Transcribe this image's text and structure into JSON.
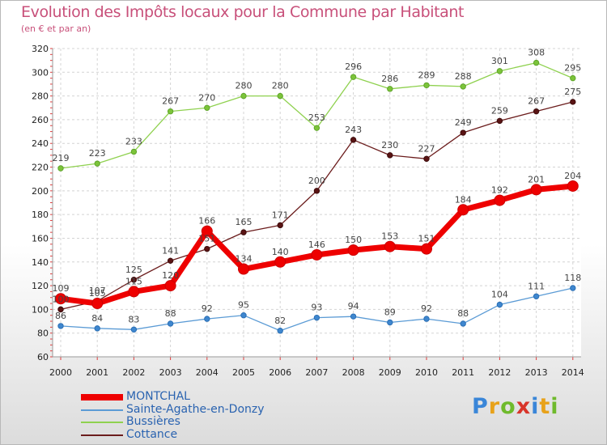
{
  "title": "Evolution des Impôts locaux pour la Commune par Habitant",
  "subtitle": "(en € et par an)",
  "logo": "Proxiti",
  "chart_data": {
    "type": "line",
    "x": [
      "2000",
      "2001",
      "2002",
      "2003",
      "2004",
      "2005",
      "2006",
      "2007",
      "2008",
      "2009",
      "2010",
      "2011",
      "2012",
      "2013",
      "2014"
    ],
    "ylim": [
      60,
      320
    ],
    "yticks": [
      60,
      80,
      100,
      120,
      140,
      160,
      180,
      200,
      220,
      240,
      260,
      280,
      300,
      320
    ],
    "grid": true,
    "legend_position": "bottom-left",
    "series": [
      {
        "name": "MONTCHAL",
        "color": "#ee0000",
        "values": [
          109,
          105,
          115,
          120,
          166,
          134,
          140,
          146,
          150,
          153,
          151,
          184,
          192,
          201,
          204
        ]
      },
      {
        "name": "Sainte-Agathe-en-Donzy",
        "color": "#5b9bd5",
        "values": [
          86,
          84,
          83,
          88,
          92,
          95,
          82,
          93,
          94,
          89,
          92,
          88,
          104,
          111,
          118
        ]
      },
      {
        "name": "Bussières",
        "color": "#8fd14f",
        "values": [
          219,
          223,
          233,
          267,
          270,
          280,
          280,
          253,
          296,
          286,
          289,
          288,
          301,
          308,
          295
        ]
      },
      {
        "name": "Cottance",
        "color": "#6b1c1c",
        "values": [
          100,
          107,
          125,
          141,
          151,
          165,
          171,
          200,
          243,
          230,
          227,
          249,
          259,
          267,
          275
        ]
      }
    ]
  }
}
